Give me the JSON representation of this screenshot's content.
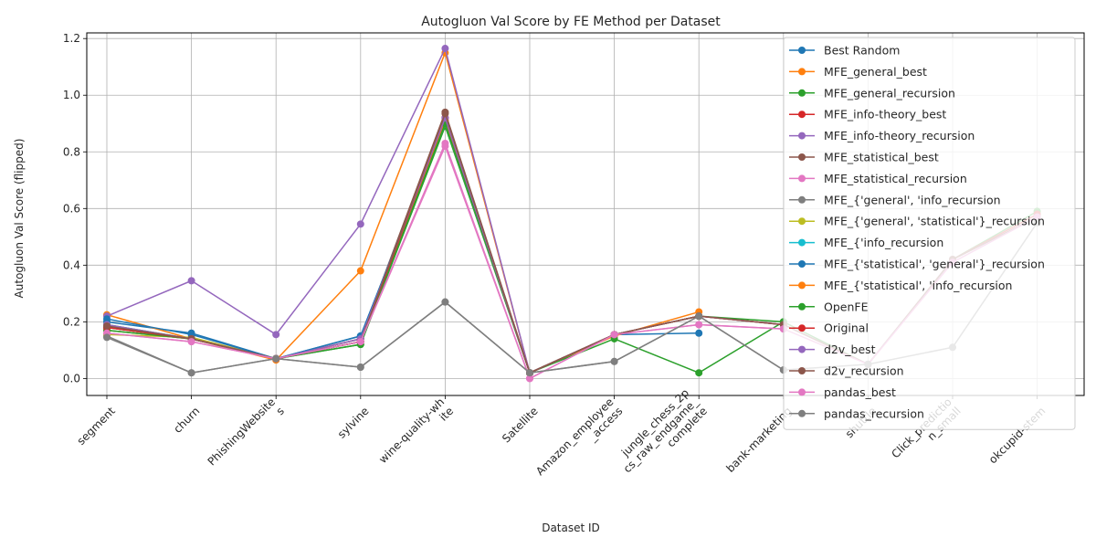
{
  "chart_data": {
    "type": "line",
    "title": "Autogluon Val Score by FE Method per Dataset",
    "xlabel": "Dataset ID",
    "ylabel": "Autogluon Val Score (flipped)",
    "ylim": [
      -0.06,
      1.22
    ],
    "yticks": [
      0.0,
      0.2,
      0.4,
      0.6,
      0.8,
      1.0,
      1.2
    ],
    "ytick_labels": [
      "0.0",
      "0.2",
      "0.4",
      "0.6",
      "0.8",
      "1.0",
      "1.2"
    ],
    "grid": true,
    "legend_position": "upper-right",
    "categories": [
      "segment",
      "churn",
      "PhishingWebsites",
      "sylvine",
      "wine-quality-white",
      "Satellite",
      "Amazon_employee_access",
      "jungle_chess_2pcs_raw_endgame_complete",
      "bank-marketing",
      "shuttle",
      "Click_prediction_small",
      "okcupid-stem"
    ],
    "category_labels": [
      [
        "segment"
      ],
      [
        "churn"
      ],
      [
        "PhishingWebsite",
        "s"
      ],
      [
        "sylvine"
      ],
      [
        "wine-quality-wh",
        "ite"
      ],
      [
        "Satellite"
      ],
      [
        "Amazon_employee",
        "_access"
      ],
      [
        "jungle_chess_2p",
        "cs_raw_endgame_",
        "complete"
      ],
      [
        "bank-marketing"
      ],
      [
        "shuttle"
      ],
      [
        "Click_predictio",
        "n_small"
      ],
      [
        "okcupid-stem"
      ]
    ],
    "series": [
      {
        "name": "Best Random",
        "color": "#1f77b4",
        "values": [
          0.2,
          0.16,
          0.07,
          0.15,
          0.91,
          0.02,
          0.155,
          0.16,
          null,
          null,
          null,
          null
        ]
      },
      {
        "name": "MFE_general_best",
        "color": "#ff7f0e",
        "values": [
          0.225,
          0.14,
          0.065,
          0.38,
          1.15,
          0.02,
          0.15,
          0.235,
          null,
          null,
          null,
          null
        ]
      },
      {
        "name": "MFE_general_recursion",
        "color": "#2ca02c",
        "values": [
          0.19,
          0.14,
          0.07,
          0.12,
          0.89,
          0.02,
          0.14,
          0.02,
          0.2,
          null,
          null,
          null
        ]
      },
      {
        "name": "MFE_info-theory_best",
        "color": "#d62728",
        "values": [
          0.18,
          0.14,
          0.07,
          0.14,
          0.92,
          0.02,
          0.155,
          0.22,
          0.19,
          null,
          null,
          null
        ]
      },
      {
        "name": "MFE_info-theory_recursion",
        "color": "#9467bd",
        "values": [
          0.22,
          0.345,
          0.155,
          0.545,
          1.165,
          0.02,
          0.155,
          0.22,
          null,
          null,
          null,
          null
        ]
      },
      {
        "name": "MFE_statistical_best",
        "color": "#8c564b",
        "values": [
          0.18,
          0.14,
          0.07,
          0.14,
          0.94,
          0.02,
          0.155,
          0.22,
          null,
          null,
          null,
          null
        ]
      },
      {
        "name": "MFE_statistical_recursion",
        "color": "#e377c2",
        "values": [
          0.16,
          0.13,
          0.07,
          0.13,
          0.82,
          0.0,
          0.155,
          0.19,
          0.175,
          null,
          null,
          null
        ]
      },
      {
        "name": "MFE_{'general', 'info_recursion",
        "color": "#7f7f7f",
        "values": [
          0.15,
          0.02,
          0.07,
          0.04,
          0.27,
          0.02,
          0.06,
          0.22,
          0.03,
          null,
          null,
          null
        ]
      },
      {
        "name": "MFE_{'general', 'statistical'}_recursion",
        "color": "#bcbd22",
        "values": [
          0.155,
          0.145,
          0.07,
          0.13,
          0.9,
          0.02,
          0.155,
          0.22,
          null,
          null,
          null,
          null
        ]
      },
      {
        "name": "MFE_{'info_recursion",
        "color": "#17becf",
        "values": [
          0.17,
          0.14,
          0.07,
          0.13,
          0.9,
          0.02,
          0.155,
          0.22,
          null,
          null,
          null,
          null
        ]
      },
      {
        "name": "MFE_{'statistical', 'general'}_recursion",
        "color": "#1f77b4",
        "values": [
          0.21,
          0.155,
          0.07,
          0.15,
          0.91,
          0.02,
          0.155,
          0.22,
          null,
          null,
          null,
          null
        ]
      },
      {
        "name": "MFE_{'statistical', 'info_recursion",
        "color": "#ff7f0e",
        "values": [
          0.17,
          0.14,
          0.07,
          0.13,
          0.91,
          0.02,
          0.155,
          0.22,
          null,
          null,
          null,
          null
        ]
      },
      {
        "name": "OpenFE",
        "color": "#2ca02c",
        "values": [
          0.17,
          0.14,
          0.07,
          0.12,
          0.9,
          0.02,
          0.155,
          0.22,
          0.2,
          0.05,
          0.42,
          0.59
        ]
      },
      {
        "name": "Original",
        "color": "#d62728",
        "values": [
          0.18,
          0.14,
          0.07,
          0.13,
          0.92,
          0.02,
          0.155,
          0.22,
          0.19,
          0.05,
          0.42,
          0.58
        ]
      },
      {
        "name": "d2v_best",
        "color": "#9467bd",
        "values": [
          0.19,
          0.14,
          0.07,
          0.14,
          0.92,
          0.02,
          0.155,
          0.22,
          0.19,
          0.05,
          0.42,
          0.57
        ]
      },
      {
        "name": "d2v_recursion",
        "color": "#8c564b",
        "values": [
          0.185,
          0.14,
          0.07,
          0.13,
          0.935,
          0.02,
          0.155,
          0.22,
          0.19,
          0.05,
          0.42,
          0.57
        ]
      },
      {
        "name": "pandas_best",
        "color": "#e377c2",
        "values": [
          0.16,
          0.13,
          0.07,
          0.13,
          0.83,
          0.0,
          0.155,
          0.19,
          0.175,
          0.05,
          0.41,
          0.57
        ]
      },
      {
        "name": "pandas_recursion",
        "color": "#7f7f7f",
        "values": [
          0.145,
          0.02,
          0.07,
          0.04,
          0.27,
          0.02,
          0.06,
          0.22,
          0.03,
          0.05,
          0.11,
          0.55
        ]
      }
    ]
  }
}
